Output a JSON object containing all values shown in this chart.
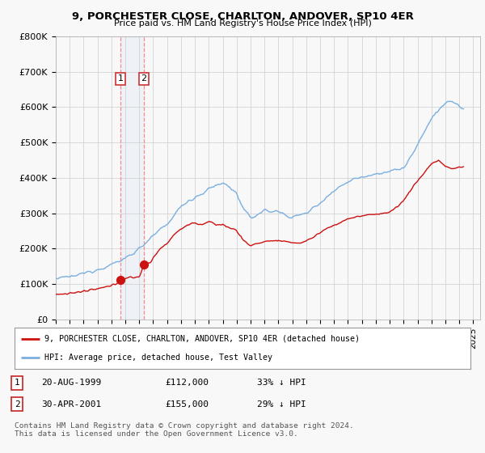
{
  "title": "9, PORCHESTER CLOSE, CHARLTON, ANDOVER, SP10 4ER",
  "subtitle": "Price paid vs. HM Land Registry's House Price Index (HPI)",
  "xlim_start": 1995.0,
  "xlim_end": 2025.5,
  "ylim": [
    0,
    800000
  ],
  "yticks": [
    0,
    100000,
    200000,
    300000,
    400000,
    500000,
    600000,
    700000,
    800000
  ],
  "ytick_labels": [
    "£0",
    "£100K",
    "£200K",
    "£300K",
    "£400K",
    "£500K",
    "£600K",
    "£700K",
    "£800K"
  ],
  "hpi_color": "#7aafe0",
  "price_color": "#cc1111",
  "sale1_date": 1999.638,
  "sale1_price": 112000,
  "sale2_date": 2001.33,
  "sale2_price": 155000,
  "legend_line1": "9, PORCHESTER CLOSE, CHARLTON, ANDOVER, SP10 4ER (detached house)",
  "legend_line2": "HPI: Average price, detached house, Test Valley",
  "table_row1": [
    "1",
    "20-AUG-1999",
    "£112,000",
    "33% ↓ HPI"
  ],
  "table_row2": [
    "2",
    "30-APR-2001",
    "£155,000",
    "29% ↓ HPI"
  ],
  "footnote": "Contains HM Land Registry data © Crown copyright and database right 2024.\nThis data is licensed under the Open Government Licence v3.0.",
  "background_color": "#f8f8f8",
  "grid_color": "#cccccc",
  "hpi_anchors_t": [
    1995.0,
    1995.5,
    1996.0,
    1996.5,
    1997.0,
    1997.5,
    1998.0,
    1998.5,
    1999.0,
    1999.5,
    2000.0,
    2000.5,
    2001.0,
    2001.5,
    2002.0,
    2002.5,
    2003.0,
    2003.5,
    2004.0,
    2004.5,
    2005.0,
    2005.5,
    2006.0,
    2006.5,
    2007.0,
    2007.5,
    2008.0,
    2008.5,
    2009.0,
    2009.5,
    2010.0,
    2010.5,
    2011.0,
    2011.5,
    2012.0,
    2012.5,
    2013.0,
    2013.5,
    2014.0,
    2014.5,
    2015.0,
    2015.5,
    2016.0,
    2016.5,
    2017.0,
    2017.5,
    2018.0,
    2018.5,
    2019.0,
    2019.5,
    2020.0,
    2020.5,
    2021.0,
    2021.5,
    2022.0,
    2022.5,
    2023.0,
    2023.5,
    2024.0,
    2024.3
  ],
  "hpi_anchors_v": [
    115000,
    117000,
    120000,
    124000,
    130000,
    136000,
    142000,
    148000,
    155000,
    163000,
    173000,
    187000,
    200000,
    218000,
    235000,
    252000,
    268000,
    295000,
    318000,
    335000,
    345000,
    355000,
    368000,
    378000,
    385000,
    375000,
    355000,
    310000,
    285000,
    298000,
    308000,
    305000,
    305000,
    295000,
    290000,
    293000,
    300000,
    315000,
    330000,
    348000,
    362000,
    378000,
    390000,
    398000,
    402000,
    408000,
    412000,
    415000,
    418000,
    422000,
    428000,
    458000,
    490000,
    530000,
    570000,
    590000,
    610000,
    618000,
    600000,
    595000
  ],
  "price_anchors_t": [
    1995.0,
    1995.5,
    1996.0,
    1996.5,
    1997.0,
    1997.5,
    1998.0,
    1998.5,
    1999.0,
    1999.3,
    1999.638,
    1999.9,
    2000.3,
    2001.0,
    2001.33,
    2001.8,
    2002.0,
    2002.5,
    2003.0,
    2003.5,
    2004.0,
    2004.5,
    2005.0,
    2005.5,
    2006.0,
    2006.5,
    2007.0,
    2007.5,
    2008.0,
    2008.5,
    2009.0,
    2009.5,
    2010.0,
    2010.5,
    2011.0,
    2011.5,
    2012.0,
    2012.5,
    2013.0,
    2013.5,
    2014.0,
    2014.5,
    2015.0,
    2015.5,
    2016.0,
    2016.5,
    2017.0,
    2017.5,
    2018.0,
    2018.5,
    2019.0,
    2019.5,
    2020.0,
    2020.5,
    2021.0,
    2021.5,
    2022.0,
    2022.5,
    2023.0,
    2023.5,
    2024.0,
    2024.3
  ],
  "price_anchors_v": [
    70000,
    72000,
    74000,
    76000,
    79000,
    82000,
    86000,
    90000,
    95000,
    100000,
    112000,
    115000,
    118000,
    120000,
    155000,
    160000,
    175000,
    200000,
    215000,
    240000,
    255000,
    268000,
    272000,
    268000,
    275000,
    268000,
    268000,
    258000,
    252000,
    222000,
    208000,
    215000,
    220000,
    222000,
    222000,
    218000,
    218000,
    215000,
    222000,
    232000,
    245000,
    258000,
    265000,
    275000,
    285000,
    288000,
    292000,
    295000,
    298000,
    300000,
    302000,
    318000,
    335000,
    365000,
    392000,
    415000,
    440000,
    450000,
    432000,
    425000,
    430000,
    432000
  ]
}
